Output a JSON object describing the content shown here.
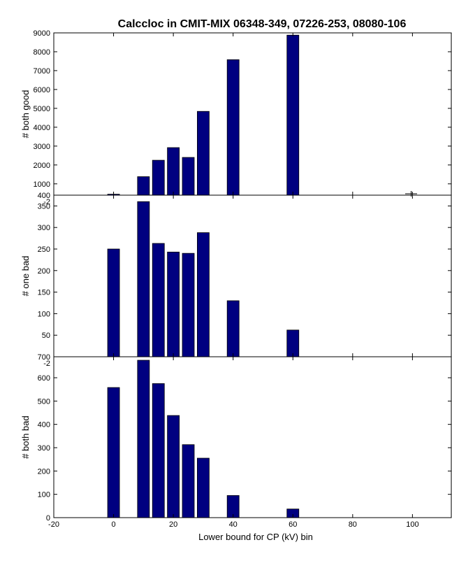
{
  "chart_data": [
    {
      "type": "bar",
      "title": "Calccloc in CMIT-MIX 06348-349, 07226-253, 08080-106",
      "ylabel": "# both good",
      "x": [
        0,
        10,
        15,
        20,
        25,
        30,
        40,
        60
      ],
      "values": [
        450,
        1380,
        2250,
        2920,
        2400,
        4840,
        7580,
        8880
      ],
      "xlim": [
        -20,
        113
      ],
      "ylim": [
        400,
        9000
      ],
      "yticks": [
        400,
        1000,
        2000,
        3000,
        4000,
        5000,
        6000,
        7000,
        8000,
        9000
      ],
      "bottom_tick_labels": [
        "-2",
        "",
        "",
        "",
        "",
        ""
      ],
      "color": "#000080",
      "grid": false
    },
    {
      "type": "bar",
      "ylabel": "# one bad",
      "x": [
        0,
        10,
        15,
        20,
        25,
        30,
        40,
        60
      ],
      "values": [
        250,
        360,
        263,
        243,
        240,
        288,
        130,
        62
      ],
      "xlim": [
        -20,
        113
      ],
      "ylim": [
        0,
        375
      ],
      "yticks": [
        50,
        100,
        150,
        200,
        250,
        300,
        350
      ],
      "color": "#000080",
      "grid": false
    },
    {
      "type": "bar",
      "ylabel": "# both bad",
      "xlabel": "Lower bound for CP (kV) bin",
      "x": [
        0,
        10,
        15,
        20,
        25,
        30,
        40,
        60
      ],
      "values": [
        558,
        675,
        575,
        438,
        313,
        255,
        95,
        37
      ],
      "xlim": [
        -20,
        113
      ],
      "ylim": [
        0,
        690
      ],
      "yticks": [
        0,
        100,
        200,
        300,
        400,
        500,
        600
      ],
      "xticks": [
        -20,
        0,
        20,
        40,
        60,
        80,
        100
      ],
      "color": "#000080",
      "grid": false
    }
  ],
  "overlap_labels": [
    "400",
    "-2",
    "700",
    "-2"
  ]
}
